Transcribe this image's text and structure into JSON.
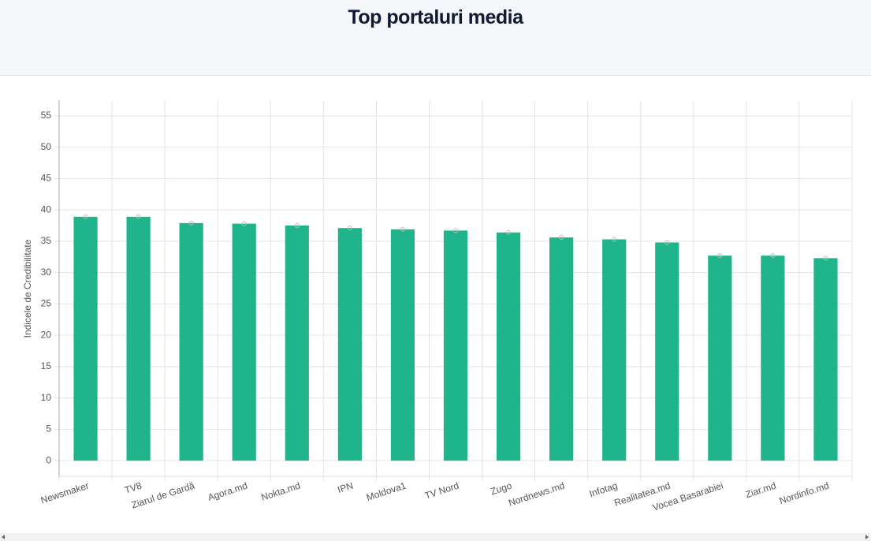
{
  "chart_data": {
    "type": "bar",
    "title": "Top portaluri media",
    "y_label": "Indicele de Credibilitate",
    "categories": [
      "Newsmaker",
      "TV8",
      "Ziarul de Gardă",
      "Agora.md",
      "Nokta.md",
      "IPN",
      "Moldova1",
      "TV Nord",
      "Zugo",
      "Nordnews.md",
      "Infotag",
      "Realitatea.md",
      "Vocea Basarabiei",
      "Ziar.md",
      "Nordinfo.md"
    ],
    "values": [
      38.9,
      38.9,
      37.9,
      37.8,
      37.5,
      37.1,
      36.9,
      36.7,
      36.4,
      35.6,
      35.3,
      34.8,
      32.7,
      32.7,
      32.3
    ],
    "color": "#1fb48c",
    "ylim": [
      -2.5,
      57.5
    ],
    "yticks": [
      0,
      5,
      10,
      15,
      20,
      25,
      30,
      35,
      40,
      45,
      50,
      55
    ],
    "grid": true
  }
}
